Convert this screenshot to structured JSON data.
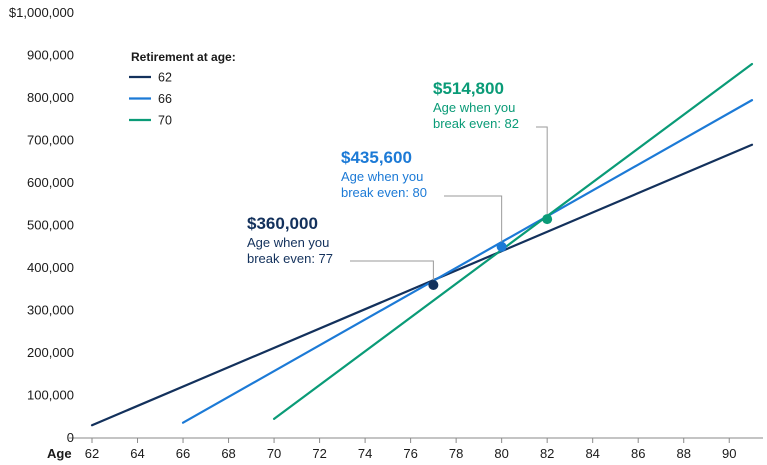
{
  "chart_data": {
    "type": "line",
    "xlabel": "Age",
    "ylabel": "",
    "xlim": [
      62,
      91
    ],
    "ylim": [
      0,
      1000000
    ],
    "x_ticks": [
      62,
      64,
      66,
      68,
      70,
      72,
      74,
      76,
      78,
      80,
      82,
      84,
      86,
      88,
      90
    ],
    "y_ticks": [
      {
        "value": 0,
        "label": "0"
      },
      {
        "value": 100000,
        "label": "100,000"
      },
      {
        "value": 200000,
        "label": "200,000"
      },
      {
        "value": 300000,
        "label": "300,000"
      },
      {
        "value": 400000,
        "label": "400,000"
      },
      {
        "value": 500000,
        "label": "500,000"
      },
      {
        "value": 600000,
        "label": "600,000"
      },
      {
        "value": 700000,
        "label": "700,000"
      },
      {
        "value": 800000,
        "label": "800,000"
      },
      {
        "value": 900000,
        "label": "900,000"
      },
      {
        "value": 1000000,
        "label": "$1,000,000"
      }
    ],
    "grid": false,
    "legend": {
      "title": "Retirement at age:",
      "placement": "top-left",
      "entries": [
        "62",
        "66",
        "70"
      ]
    },
    "series": [
      {
        "name": "62",
        "color": "#13315c",
        "x": [
          62,
          91
        ],
        "y": [
          30000,
          690000
        ]
      },
      {
        "name": "66",
        "color": "#1c7ad6",
        "x": [
          66,
          91
        ],
        "y": [
          36000,
          795000
        ]
      },
      {
        "name": "70",
        "color": "#0a9b77",
        "x": [
          70,
          91
        ],
        "y": [
          45000,
          880000
        ]
      }
    ],
    "annotations": [
      {
        "value": "$360,000",
        "line1": "Age when you",
        "line2": "break even: 77",
        "x": 77,
        "y": 360000,
        "color": "#13315c"
      },
      {
        "value": "$435,600",
        "line1": "Age when you",
        "line2": "break even: 80",
        "x": 80,
        "y": 450000,
        "color": "#1c7ad6"
      },
      {
        "value": "$514,800",
        "line1": "Age when you",
        "line2": "break even: 82",
        "x": 82,
        "y": 515000,
        "color": "#0a9b77"
      }
    ]
  }
}
